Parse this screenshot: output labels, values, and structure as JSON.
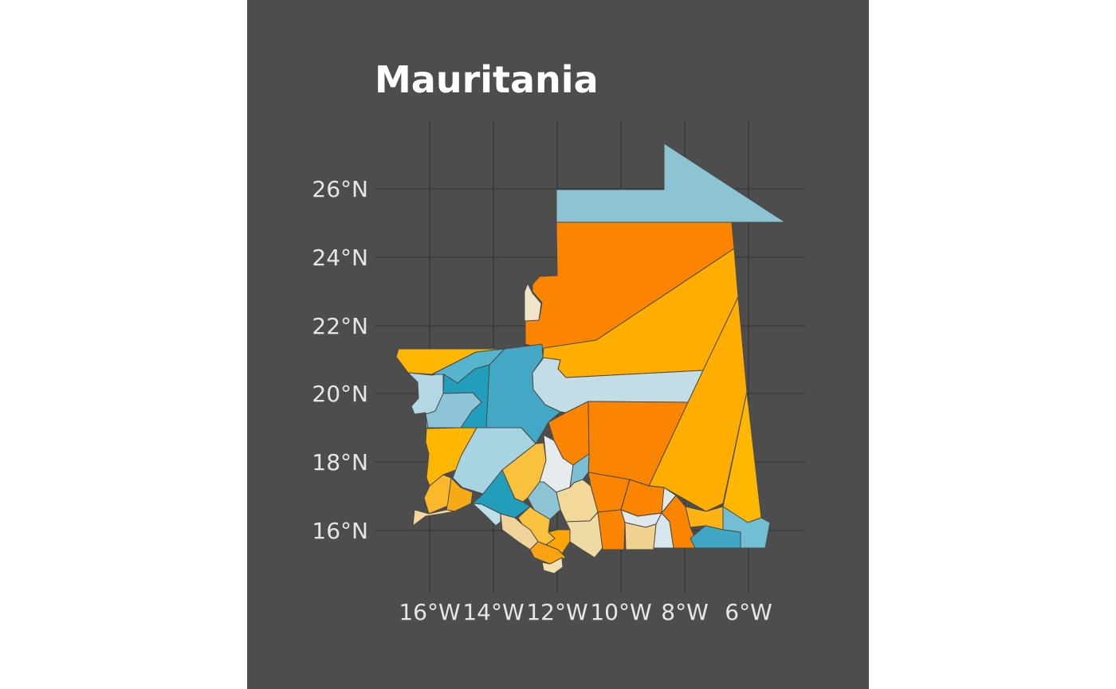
{
  "title": "Mauritania",
  "axes": {
    "x_ticks": [
      "16°W",
      "14°W",
      "12°W",
      "10°W",
      "8°W",
      "6°W"
    ],
    "y_ticks": [
      "26°N",
      "24°N",
      "22°N",
      "20°N",
      "18°N",
      "16°N"
    ]
  },
  "palette": {
    "background": "#4d4d4d",
    "page": "#ffffff",
    "gridline": "#333333",
    "border": "#4a4a4a",
    "title": "#ffffff",
    "tick_text": "#e6e6e6"
  },
  "regions": [
    {
      "id": "tiris-north",
      "fill": "#8cc4d4"
    },
    {
      "id": "tiris-zemmour-west",
      "fill": "#fb8500"
    },
    {
      "id": "zemmour-panhandle",
      "fill": "#ede4ca"
    },
    {
      "id": "adrar-east",
      "fill": "#ffad00"
    },
    {
      "id": "hodh-east-upper",
      "fill": "#ffad00"
    },
    {
      "id": "hodh-east-lower",
      "fill": "#ffb700"
    },
    {
      "id": "dakhlet-north",
      "fill": "#ffb703"
    },
    {
      "id": "inchiri-west",
      "fill": "#b4d7e4"
    },
    {
      "id": "inchiri-east",
      "fill": "#56b4cc"
    },
    {
      "id": "coast-a",
      "fill": "#219ebc"
    },
    {
      "id": "coast-b",
      "fill": "#8ec4d8"
    },
    {
      "id": "adrar-center",
      "fill": "#42a8c6"
    },
    {
      "id": "adrar-plateau",
      "fill": "#c2dde6"
    },
    {
      "id": "tagant-west",
      "fill": "#fb8500"
    },
    {
      "id": "tagant-east",
      "fill": "#fb8500"
    },
    {
      "id": "trarza-west",
      "fill": "#ffb703"
    },
    {
      "id": "trarza-upper",
      "fill": "#a8d3e1"
    },
    {
      "id": "trarza-center",
      "fill": "#f9c13d"
    },
    {
      "id": "brakna-strip",
      "fill": "#e6ecee"
    },
    {
      "id": "brakna-teal",
      "fill": "#77c0d6"
    },
    {
      "id": "aleg",
      "fill": "#fb8500"
    },
    {
      "id": "rosso-a",
      "fill": "#fab82a"
    },
    {
      "id": "rosso-b",
      "fill": "#f6aa15"
    },
    {
      "id": "boghe",
      "fill": "#219ebc"
    },
    {
      "id": "coast-tan",
      "fill": "#f5d99a"
    },
    {
      "id": "coast-light",
      "fill": "#bcdfe8"
    },
    {
      "id": "gorgol-a",
      "fill": "#8cc4d4"
    },
    {
      "id": "gorgol-tan",
      "fill": "#f2d899"
    },
    {
      "id": "gorgol-gold",
      "fill": "#f9c13d"
    },
    {
      "id": "kaedi-tan",
      "fill": "#efd39a"
    },
    {
      "id": "selibaby",
      "fill": "#f9a312"
    },
    {
      "id": "guidimaka-a",
      "fill": "#fca605"
    },
    {
      "id": "guidimaka-b",
      "fill": "#f3dfae"
    },
    {
      "id": "guidimaka-c",
      "fill": "#efd9a4"
    },
    {
      "id": "kiffa",
      "fill": "#fb8500"
    },
    {
      "id": "kiffa-south",
      "fill": "#fb8500"
    },
    {
      "id": "tintane",
      "fill": "#e1e8ec"
    },
    {
      "id": "aioun-tan",
      "fill": "#f2d28f"
    },
    {
      "id": "aioun-light",
      "fill": "#d6e6ec"
    },
    {
      "id": "nema-orange",
      "fill": "#fb8500"
    },
    {
      "id": "nema-gold",
      "fill": "#fcb314"
    },
    {
      "id": "hodh-blue-a",
      "fill": "#3fa6c4"
    },
    {
      "id": "hodh-blue-b",
      "fill": "#72bfd3"
    },
    {
      "id": "tidjikja-mid",
      "fill": "#dfe9ec"
    }
  ]
}
